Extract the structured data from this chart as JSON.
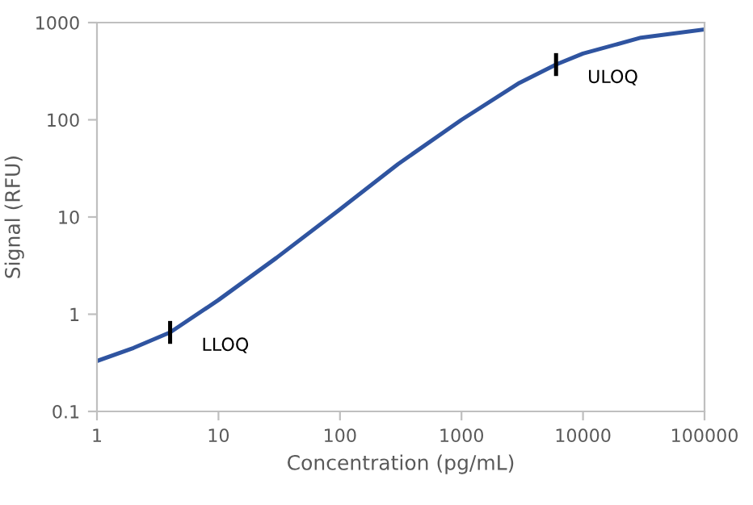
{
  "chart_data": {
    "type": "line",
    "xlabel": "Concentration (pg/mL)",
    "ylabel": "Signal (RFU)",
    "log": "xy",
    "grid": false,
    "legend": false,
    "marker": "none",
    "line_style": "solid",
    "x": [
      1,
      2,
      4,
      10,
      30,
      100,
      300,
      1000,
      3000,
      6000,
      10000,
      30000,
      100000
    ],
    "series": [
      {
        "color": "#2f54a0",
        "values": [
          0.33,
          0.45,
          0.65,
          1.4,
          3.8,
          12,
          35,
          100,
          240,
          370,
          480,
          700,
          850
        ]
      }
    ],
    "xlim": [
      1,
      100000
    ],
    "ylim": [
      0.1,
      1000
    ],
    "xticks": [
      1,
      10,
      100,
      1000,
      10000,
      100000
    ],
    "yticks": [
      {
        "value": 0.1,
        "label": "0.1"
      },
      1,
      10,
      100,
      1000
    ],
    "annotations": [
      {
        "text": "LLOQ",
        "x": 4,
        "y": 0.65
      },
      {
        "text": "ULOQ",
        "x": 6000,
        "y": 370
      }
    ]
  }
}
